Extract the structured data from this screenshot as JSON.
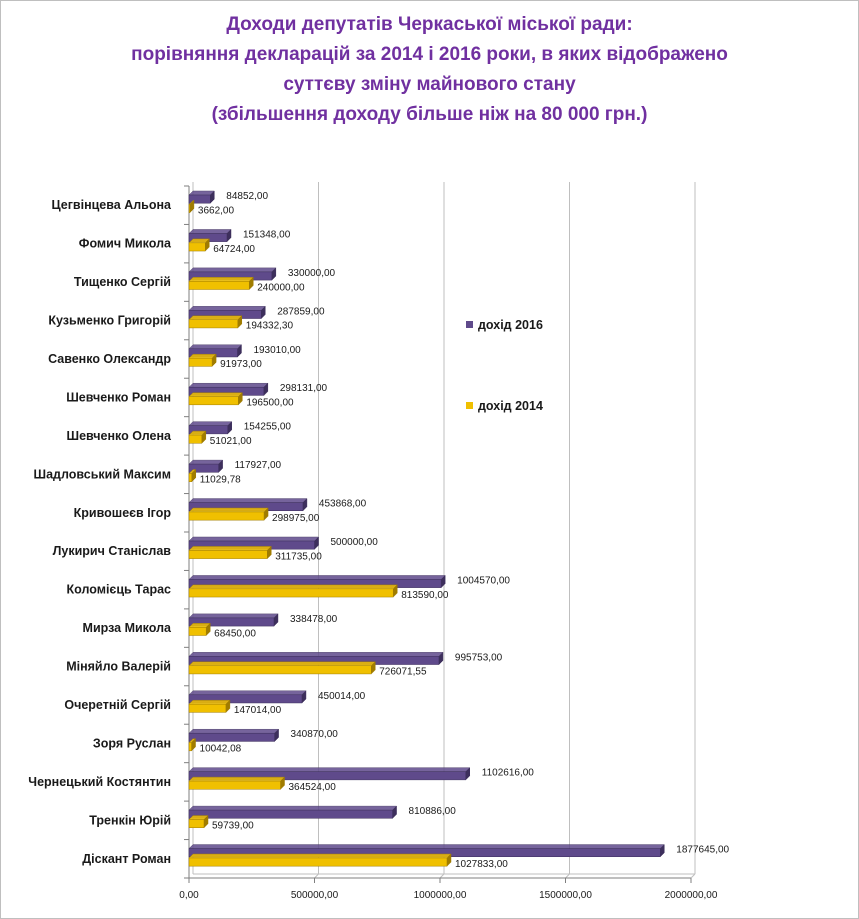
{
  "title": {
    "line1": "Доходи депутатів Черкаської міської ради:",
    "line2": "порівняння декларацій за 2014 і 2016 роки, в яких відображено",
    "line3": "суттєву зміну майнового стану",
    "line4": "(збільшення доходу більше ніж на 80 000 грн.)"
  },
  "colors": {
    "series_2016": "#5f4a8b",
    "series_2016_dark": "#3d2f5c",
    "series_2014": "#f0c000",
    "series_2014_dark": "#a07c00",
    "gridline": "#bfbfbf",
    "title": "#7030a0"
  },
  "chart_data": {
    "type": "bar",
    "orientation": "horizontal",
    "categories": [
      "Цегвінцева Альона",
      "Фомич Микола",
      "Тищенко Сергій",
      "Кузьменко Григорій",
      "Савенко Олександр",
      "Шевченко Роман",
      "Шевченко Олена",
      "Шадловський Максим",
      "Кривошеєв Ігор",
      "Лукирич Станіслав",
      "Коломієць Тарас",
      "Мирза Микола",
      "Міняйло Валерій",
      "Очеретній Сергій",
      "Зоря Руслан",
      "Чернецький Костянтин",
      "Тренкін Юрій",
      "Діскант Роман"
    ],
    "series": [
      {
        "name": "дохід 2016",
        "values": [
          84852,
          151348,
          330000,
          287859,
          193010,
          298131,
          154255,
          117927,
          453868,
          500000,
          1004570,
          338478,
          995753,
          450014,
          340870,
          1102616,
          810886,
          1877645
        ],
        "labels": [
          "84852,00",
          "151348,00",
          "330000,00",
          "287859,00",
          "193010,00",
          "298131,00",
          "154255,00",
          "117927,00",
          "453868,00",
          "500000,00",
          "1004570,00",
          "338478,00",
          "995753,00",
          "450014,00",
          "340870,00",
          "1102616,00",
          "810886,00",
          "1877645,00"
        ]
      },
      {
        "name": "дохід 2014",
        "values": [
          3662,
          64724,
          240000,
          194332.3,
          91973,
          196500,
          51021,
          11029.78,
          298975,
          311735,
          813590,
          68450,
          726071.55,
          147014,
          10042.08,
          364524,
          59739,
          1027833
        ],
        "labels": [
          "3662,00",
          "64724,00",
          "240000,00",
          "194332,30",
          "91973,00",
          "196500,00",
          "51021,00",
          "11029,78",
          "298975,00",
          "311735,00",
          "813590,00",
          "68450,00",
          "726071,55",
          "147014,00",
          "10042,08",
          "364524,00",
          "59739,00",
          "1027833,00"
        ]
      }
    ],
    "xlim": [
      0,
      2000000
    ],
    "xticks": [
      0,
      500000,
      1000000,
      1500000,
      2000000
    ],
    "xtick_labels": [
      "0,00",
      "500000,00",
      "1000000,00",
      "1500000,00",
      "2000000,00"
    ],
    "grid": "vertical",
    "legend_position": "right"
  }
}
